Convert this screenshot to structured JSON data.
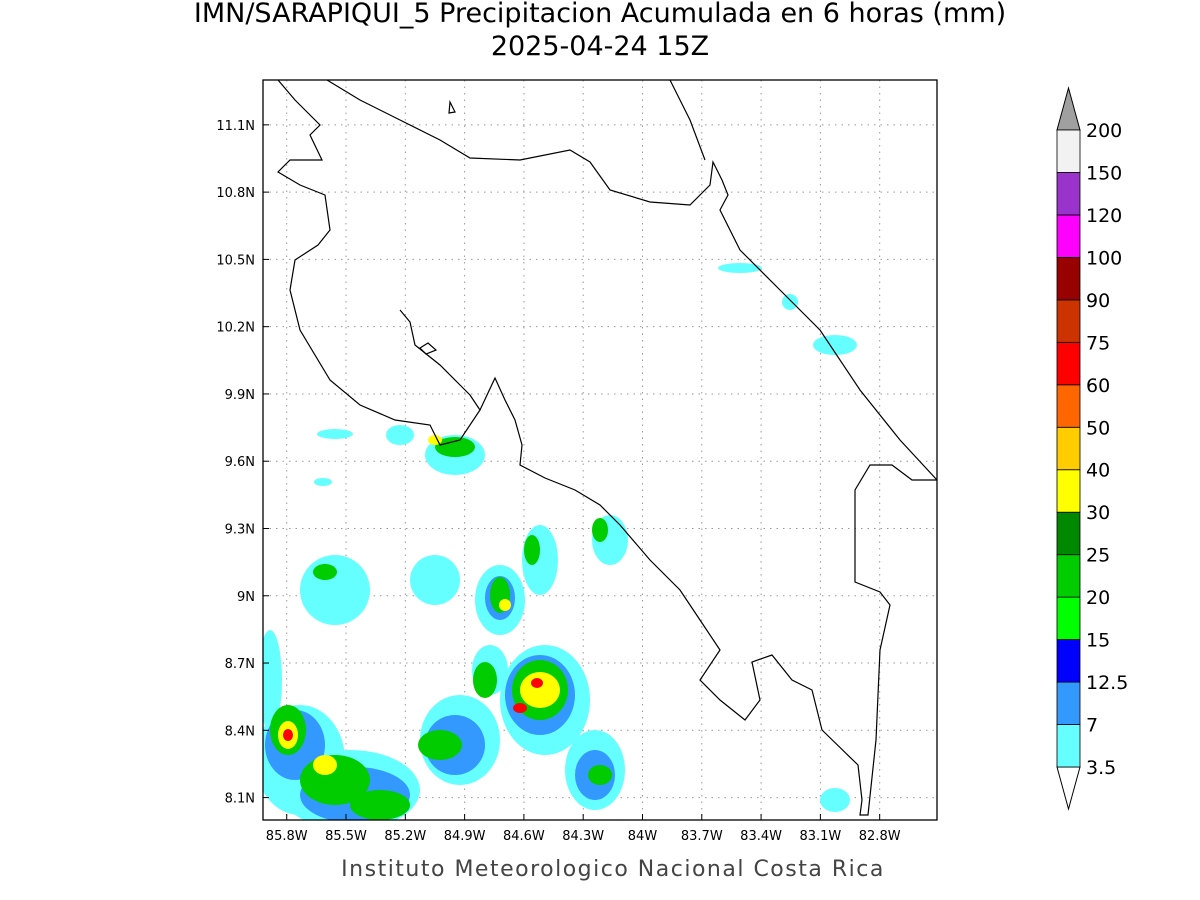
{
  "title": "IMN/SARAPIQUI_5 Precipitacion Acumulada en 6 horas (mm)",
  "subtitle": "2025-04-24 15Z",
  "credit": "Instituto Meteorologico Nacional Costa Rica",
  "map": {
    "xlim": [
      -85.92,
      -82.51
    ],
    "ylim": [
      8.0,
      11.3
    ],
    "xticks": [
      {
        "value": -85.8,
        "label": "85.8W"
      },
      {
        "value": -85.5,
        "label": "85.5W"
      },
      {
        "value": -85.2,
        "label": "85.2W"
      },
      {
        "value": -84.9,
        "label": "84.9W"
      },
      {
        "value": -84.6,
        "label": "84.6W"
      },
      {
        "value": -84.3,
        "label": "84.3W"
      },
      {
        "value": -84.0,
        "label": "84W"
      },
      {
        "value": -83.7,
        "label": "83.7W"
      },
      {
        "value": -83.4,
        "label": "83.4W"
      },
      {
        "value": -83.1,
        "label": "83.1W"
      },
      {
        "value": -82.8,
        "label": "82.8W"
      }
    ],
    "yticks": [
      {
        "value": 8.1,
        "label": "8.1N"
      },
      {
        "value": 8.4,
        "label": "8.4N"
      },
      {
        "value": 8.7,
        "label": "8.7N"
      },
      {
        "value": 9.0,
        "label": "9N"
      },
      {
        "value": 9.3,
        "label": "9.3N"
      },
      {
        "value": 9.6,
        "label": "9.6N"
      },
      {
        "value": 9.9,
        "label": "9.9N"
      },
      {
        "value": 10.2,
        "label": "10.2N"
      },
      {
        "value": 10.5,
        "label": "10.5N"
      },
      {
        "value": 10.8,
        "label": "10.8N"
      },
      {
        "value": 11.1,
        "label": "11.1N"
      }
    ],
    "grid": true
  },
  "colorbar": {
    "levels": [
      3.5,
      7,
      12.5,
      15,
      20,
      25,
      30,
      40,
      50,
      60,
      75,
      90,
      100,
      120,
      150,
      200
    ],
    "colors": [
      "#66ffff",
      "#3399ff",
      "#0000ff",
      "#00ff00",
      "#00cc00",
      "#008800",
      "#ffff00",
      "#ffcc00",
      "#ff6600",
      "#ff0000",
      "#cc3300",
      "#990000",
      "#ff00ff",
      "#9933cc",
      "#f2f2f2"
    ],
    "over_color": "#a0a0a0",
    "under_color": "#ffffff"
  }
}
